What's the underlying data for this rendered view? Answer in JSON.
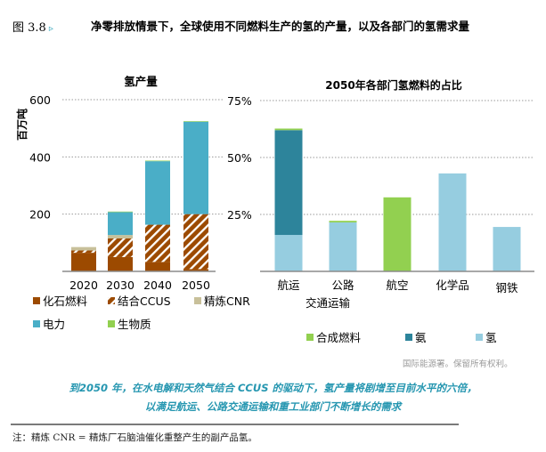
{
  "figure": {
    "number": "图 3.8",
    "marker": "▹",
    "title": "净零排放情景下，全球使用不同燃料生产的氢的产量，以及各部门的氢需求量"
  },
  "chart_data": [
    {
      "type": "bar",
      "stacked": true,
      "title": "氢产量",
      "xlabel": "",
      "ylabel": "百万吨",
      "ylim": [
        0,
        600
      ],
      "yticks": [
        200,
        400,
        600
      ],
      "ytick_labels": [
        "200",
        "400",
        "600"
      ],
      "grid": true,
      "categories": [
        "2020",
        "2030",
        "2040",
        "2050"
      ],
      "series": [
        {
          "name": "化石燃料",
          "color": "#9c4a00",
          "pattern": "solid",
          "values": [
            65,
            50,
            33,
            8
          ]
        },
        {
          "name": "结合CCUS",
          "color": "#9c4a00",
          "pattern": "hatch",
          "values": [
            8,
            65,
            130,
            192
          ]
        },
        {
          "name": "精炼CNR",
          "color": "#c8c09a",
          "pattern": "solid",
          "values": [
            12,
            12,
            0,
            0
          ]
        },
        {
          "name": "电力",
          "color": "#4aaec7",
          "pattern": "solid",
          "values": [
            0,
            80,
            222,
            323
          ]
        },
        {
          "name": "生物质",
          "color": "#92d050",
          "pattern": "solid",
          "values": [
            0,
            2,
            2,
            2
          ]
        }
      ],
      "legend": {
        "placement": "bottom",
        "rows": [
          [
            "化石燃料",
            "结合CCUS",
            "精炼CNR"
          ],
          [
            "电力",
            "生物质"
          ]
        ]
      }
    },
    {
      "type": "bar",
      "stacked": true,
      "title": "2050年各部门氢燃料的占比",
      "xlabel": "交通运输",
      "ylabel": "",
      "ylim": [
        0,
        75
      ],
      "yticks": [
        25,
        50,
        75
      ],
      "ytick_labels": [
        "25%",
        "50%",
        "75%"
      ],
      "grid": true,
      "categories": [
        "航运",
        "公路",
        "航空",
        "化学品",
        "钢铁"
      ],
      "group_label": {
        "text": "交通运输",
        "spans": [
          "航运",
          "公路",
          "航空"
        ]
      },
      "series": [
        {
          "name": "氢",
          "color": "#96cde0",
          "values": [
            16,
            21.5,
            0,
            43,
            19.5
          ]
        },
        {
          "name": "氨",
          "color": "#2d849b",
          "values": [
            46,
            0,
            0,
            0,
            0
          ]
        },
        {
          "name": "合成燃料",
          "color": "#92d050",
          "values": [
            0.7,
            0.7,
            32.5,
            0,
            0
          ]
        }
      ],
      "legend": {
        "placement": "bottom",
        "order": [
          "合成燃料",
          "氨",
          "氢"
        ]
      }
    }
  ],
  "copyright": "国际能源署。保留所有权利。",
  "caption": {
    "line1": "到2050 年，在水电解和天然气结合 CCUS 的驱动下，氢产量将剧增至目前水平的六倍，",
    "line2": "以满足航运、公路交通运输和重工业部门不断增长的需求"
  },
  "note": "注：精炼 CNR = 精炼厂石脑油催化重整产生的副产品氢。"
}
